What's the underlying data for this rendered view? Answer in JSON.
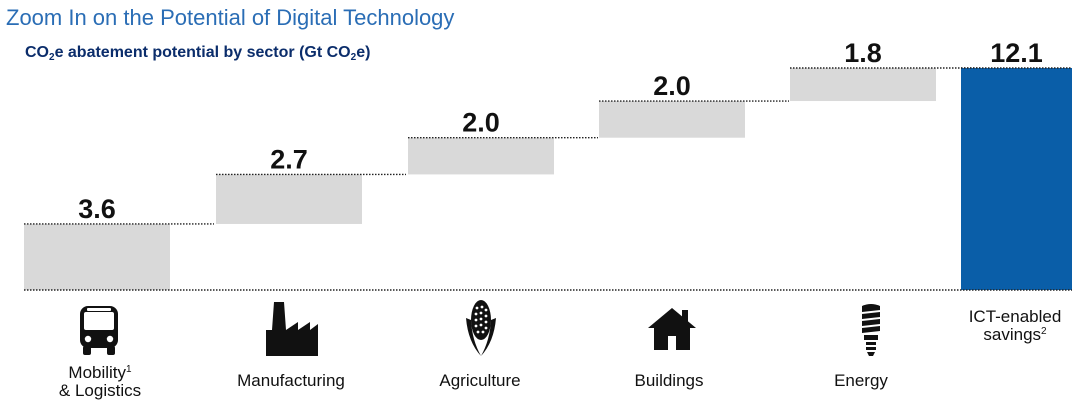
{
  "header": {
    "title": "Zoom In on the Potential of Digital Technology"
  },
  "subtitle": {
    "part1": "CO",
    "sub1": "2",
    "part2": "e abatement potential by sector (Gt CO",
    "sub2": "2",
    "part3": "e)"
  },
  "colors": {
    "title": "#2a6db5",
    "subtitle": "#0b2d6b",
    "bar_gray": "#d9d9d9",
    "bar_total": "#0a5ea8"
  },
  "chart_data": {
    "type": "bar",
    "subtype": "waterfall",
    "title": "CO2e abatement potential by sector (Gt CO2e)",
    "categories": [
      "Mobility & Logistics",
      "Manufacturing",
      "Agriculture",
      "Buildings",
      "Energy",
      "ICT-enabled savings"
    ],
    "values": [
      3.6,
      2.7,
      2.0,
      2.0,
      1.8,
      12.1
    ],
    "value_labels": [
      "3.6",
      "2.7",
      "2.0",
      "2.0",
      "1.8",
      "12.1"
    ],
    "total_index": 5,
    "ylim": [
      0,
      12.1
    ],
    "grid": false
  },
  "categories_display": [
    {
      "line1": "Mobility",
      "sup": "1",
      "line2": "& Logistics",
      "icon": "bus-icon"
    },
    {
      "line1": "Manufacturing",
      "sup": "",
      "line2": "",
      "icon": "factory-icon"
    },
    {
      "line1": "Agriculture",
      "sup": "",
      "line2": "",
      "icon": "corn-icon"
    },
    {
      "line1": "Buildings",
      "sup": "",
      "line2": "",
      "icon": "house-icon"
    },
    {
      "line1": "Energy",
      "sup": "",
      "line2": "",
      "icon": "lightbulb-icon"
    },
    {
      "line1": "ICT-enabled",
      "sup": "",
      "line2": "savings",
      "sup2": "2",
      "icon": ""
    }
  ]
}
